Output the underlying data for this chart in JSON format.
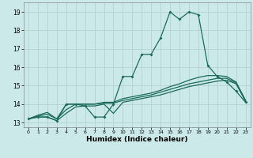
{
  "xlabel": "Humidex (Indice chaleur)",
  "bg_color": "#cce9e9",
  "grid_color": "#b0cccc",
  "line_color": "#1a6b5a",
  "xlim": [
    -0.5,
    23.5
  ],
  "ylim": [
    12.75,
    19.5
  ],
  "xticks": [
    0,
    1,
    2,
    3,
    4,
    5,
    6,
    7,
    8,
    9,
    10,
    11,
    12,
    13,
    14,
    15,
    16,
    17,
    18,
    19,
    20,
    21,
    22,
    23
  ],
  "yticks": [
    13,
    14,
    15,
    16,
    17,
    18,
    19
  ],
  "curve1_x": [
    0,
    1,
    2,
    3,
    4,
    5,
    6,
    7,
    8,
    9,
    10,
    11,
    12,
    13,
    14,
    15,
    16,
    17,
    18,
    19,
    20,
    21,
    22,
    23
  ],
  "curve1_y": [
    13.2,
    13.3,
    13.3,
    13.1,
    14.0,
    14.0,
    13.9,
    13.3,
    13.3,
    14.0,
    15.5,
    15.5,
    16.7,
    16.7,
    17.6,
    19.0,
    18.6,
    19.0,
    18.85,
    16.1,
    15.5,
    15.2,
    14.7,
    14.1
  ],
  "curve2_x": [
    0,
    1,
    2,
    3,
    4,
    5,
    6,
    7,
    8,
    9,
    10,
    11,
    12,
    13,
    14,
    15,
    16,
    17,
    18,
    19,
    20,
    21,
    22,
    23
  ],
  "curve2_y": [
    13.2,
    13.4,
    13.55,
    13.2,
    14.0,
    14.0,
    14.0,
    14.0,
    14.1,
    14.1,
    14.3,
    14.4,
    14.5,
    14.6,
    14.75,
    14.95,
    15.1,
    15.3,
    15.45,
    15.55,
    15.55,
    15.5,
    15.2,
    14.2
  ],
  "curve3_x": [
    0,
    1,
    2,
    3,
    4,
    5,
    6,
    7,
    8,
    9,
    10,
    11,
    12,
    13,
    14,
    15,
    16,
    17,
    18,
    19,
    20,
    21,
    22,
    23
  ],
  "curve3_y": [
    13.2,
    13.35,
    13.45,
    13.2,
    13.7,
    14.0,
    14.0,
    14.0,
    14.05,
    14.05,
    14.2,
    14.3,
    14.4,
    14.5,
    14.65,
    14.8,
    14.95,
    15.1,
    15.2,
    15.3,
    15.4,
    15.4,
    15.15,
    14.2
  ],
  "curve4_x": [
    0,
    1,
    2,
    3,
    4,
    5,
    6,
    7,
    8,
    9,
    10,
    11,
    12,
    13,
    14,
    15,
    16,
    17,
    18,
    19,
    20,
    21,
    22,
    23
  ],
  "curve4_y": [
    13.2,
    13.3,
    13.3,
    13.1,
    13.5,
    13.85,
    13.9,
    13.9,
    14.0,
    13.5,
    14.1,
    14.2,
    14.3,
    14.4,
    14.5,
    14.65,
    14.8,
    14.95,
    15.05,
    15.15,
    15.25,
    15.3,
    15.1,
    14.15
  ]
}
